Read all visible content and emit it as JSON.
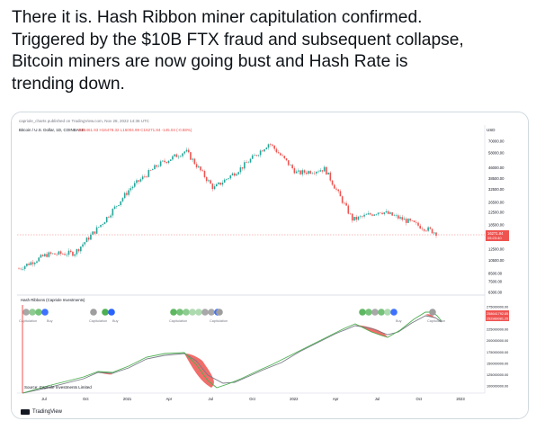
{
  "tweet": {
    "lines": [
      "There it is. Hash Ribbon miner capitulation confirmed.",
      "Triggered by the $10B FTX fraud and subsequent collapse,",
      "Bitcoin miners are now going bust and Hash Rate is",
      "trending down."
    ]
  },
  "chart": {
    "publish_line": "capriole_charts published on TradingView.com, Nov 28, 2022 14:36 UTC",
    "symbol_line": "Bitcoin / U.S. Dollar, 1D, COINBASE",
    "ohlc_line": "O16461.93 H16478.32 L16004.99 C16271.84 -145.04 (-0.88%)",
    "currency": "USD",
    "price_ticks": [
      "70000.00",
      "58000.00",
      "46000.00",
      "38500.00",
      "32500.00",
      "26500.00",
      "22500.00",
      "18500.00",
      "15000.00",
      "12500.00",
      "10500.00",
      "8500.00",
      "7500.00",
      "6300.00"
    ],
    "price_label_1": "16271.84",
    "price_label_2": "05:23:40",
    "panel_title": "Hash Ribbons (Capriole Investments)",
    "hash_ticks": [
      "275000000.00",
      "250000000.00",
      "225000000.00",
      "200000000.00",
      "175000000.00",
      "150000000.00",
      "125000000.00",
      "100000000.00"
    ],
    "hash_label_1": "258641792.85",
    "hash_label_2": "252989081.25",
    "source": "Source: Capriole Investments Limited",
    "x_ticks": [
      "Jul",
      "Oct",
      "2021",
      "Apr",
      "Jul",
      "Oct",
      "2022",
      "Apr",
      "Jul",
      "Oct",
      "2023"
    ],
    "capitulation_labels": [
      "Capitulation",
      "Buy",
      "Capitulation",
      "Buy",
      "Capitulation",
      "Capitulation",
      "Buy",
      "Capitulation"
    ],
    "tv_brand": "TradingView",
    "colors": {
      "up": "#26a69a",
      "down": "#ef5350",
      "fast_ma": "#4caf50",
      "slow_ma": "#787b86",
      "buy_dot": "#2962ff",
      "price_tag": "#ef5350"
    }
  },
  "chart_data": {
    "type": "line",
    "title": "Bitcoin / U.S. Dollar, 1D, COINBASE",
    "series": [
      {
        "name": "Bitcoin / U.S. Dollar",
        "x": [
          "2020-06",
          "2020-08",
          "2020-10",
          "2020-12",
          "2021-01",
          "2021-02",
          "2021-04",
          "2021-06",
          "2021-08",
          "2021-11",
          "2022-01",
          "2022-04",
          "2022-06",
          "2022-08",
          "2022-10",
          "2022-11"
        ],
        "values": [
          9200,
          11500,
          11800,
          19000,
          33000,
          48000,
          60000,
          33000,
          46000,
          68000,
          42000,
          45000,
          20000,
          23000,
          19500,
          16271.84
        ]
      }
    ],
    "ylabel": "USD",
    "ylog": true,
    "ylim": [
      6300,
      70000
    ]
  }
}
